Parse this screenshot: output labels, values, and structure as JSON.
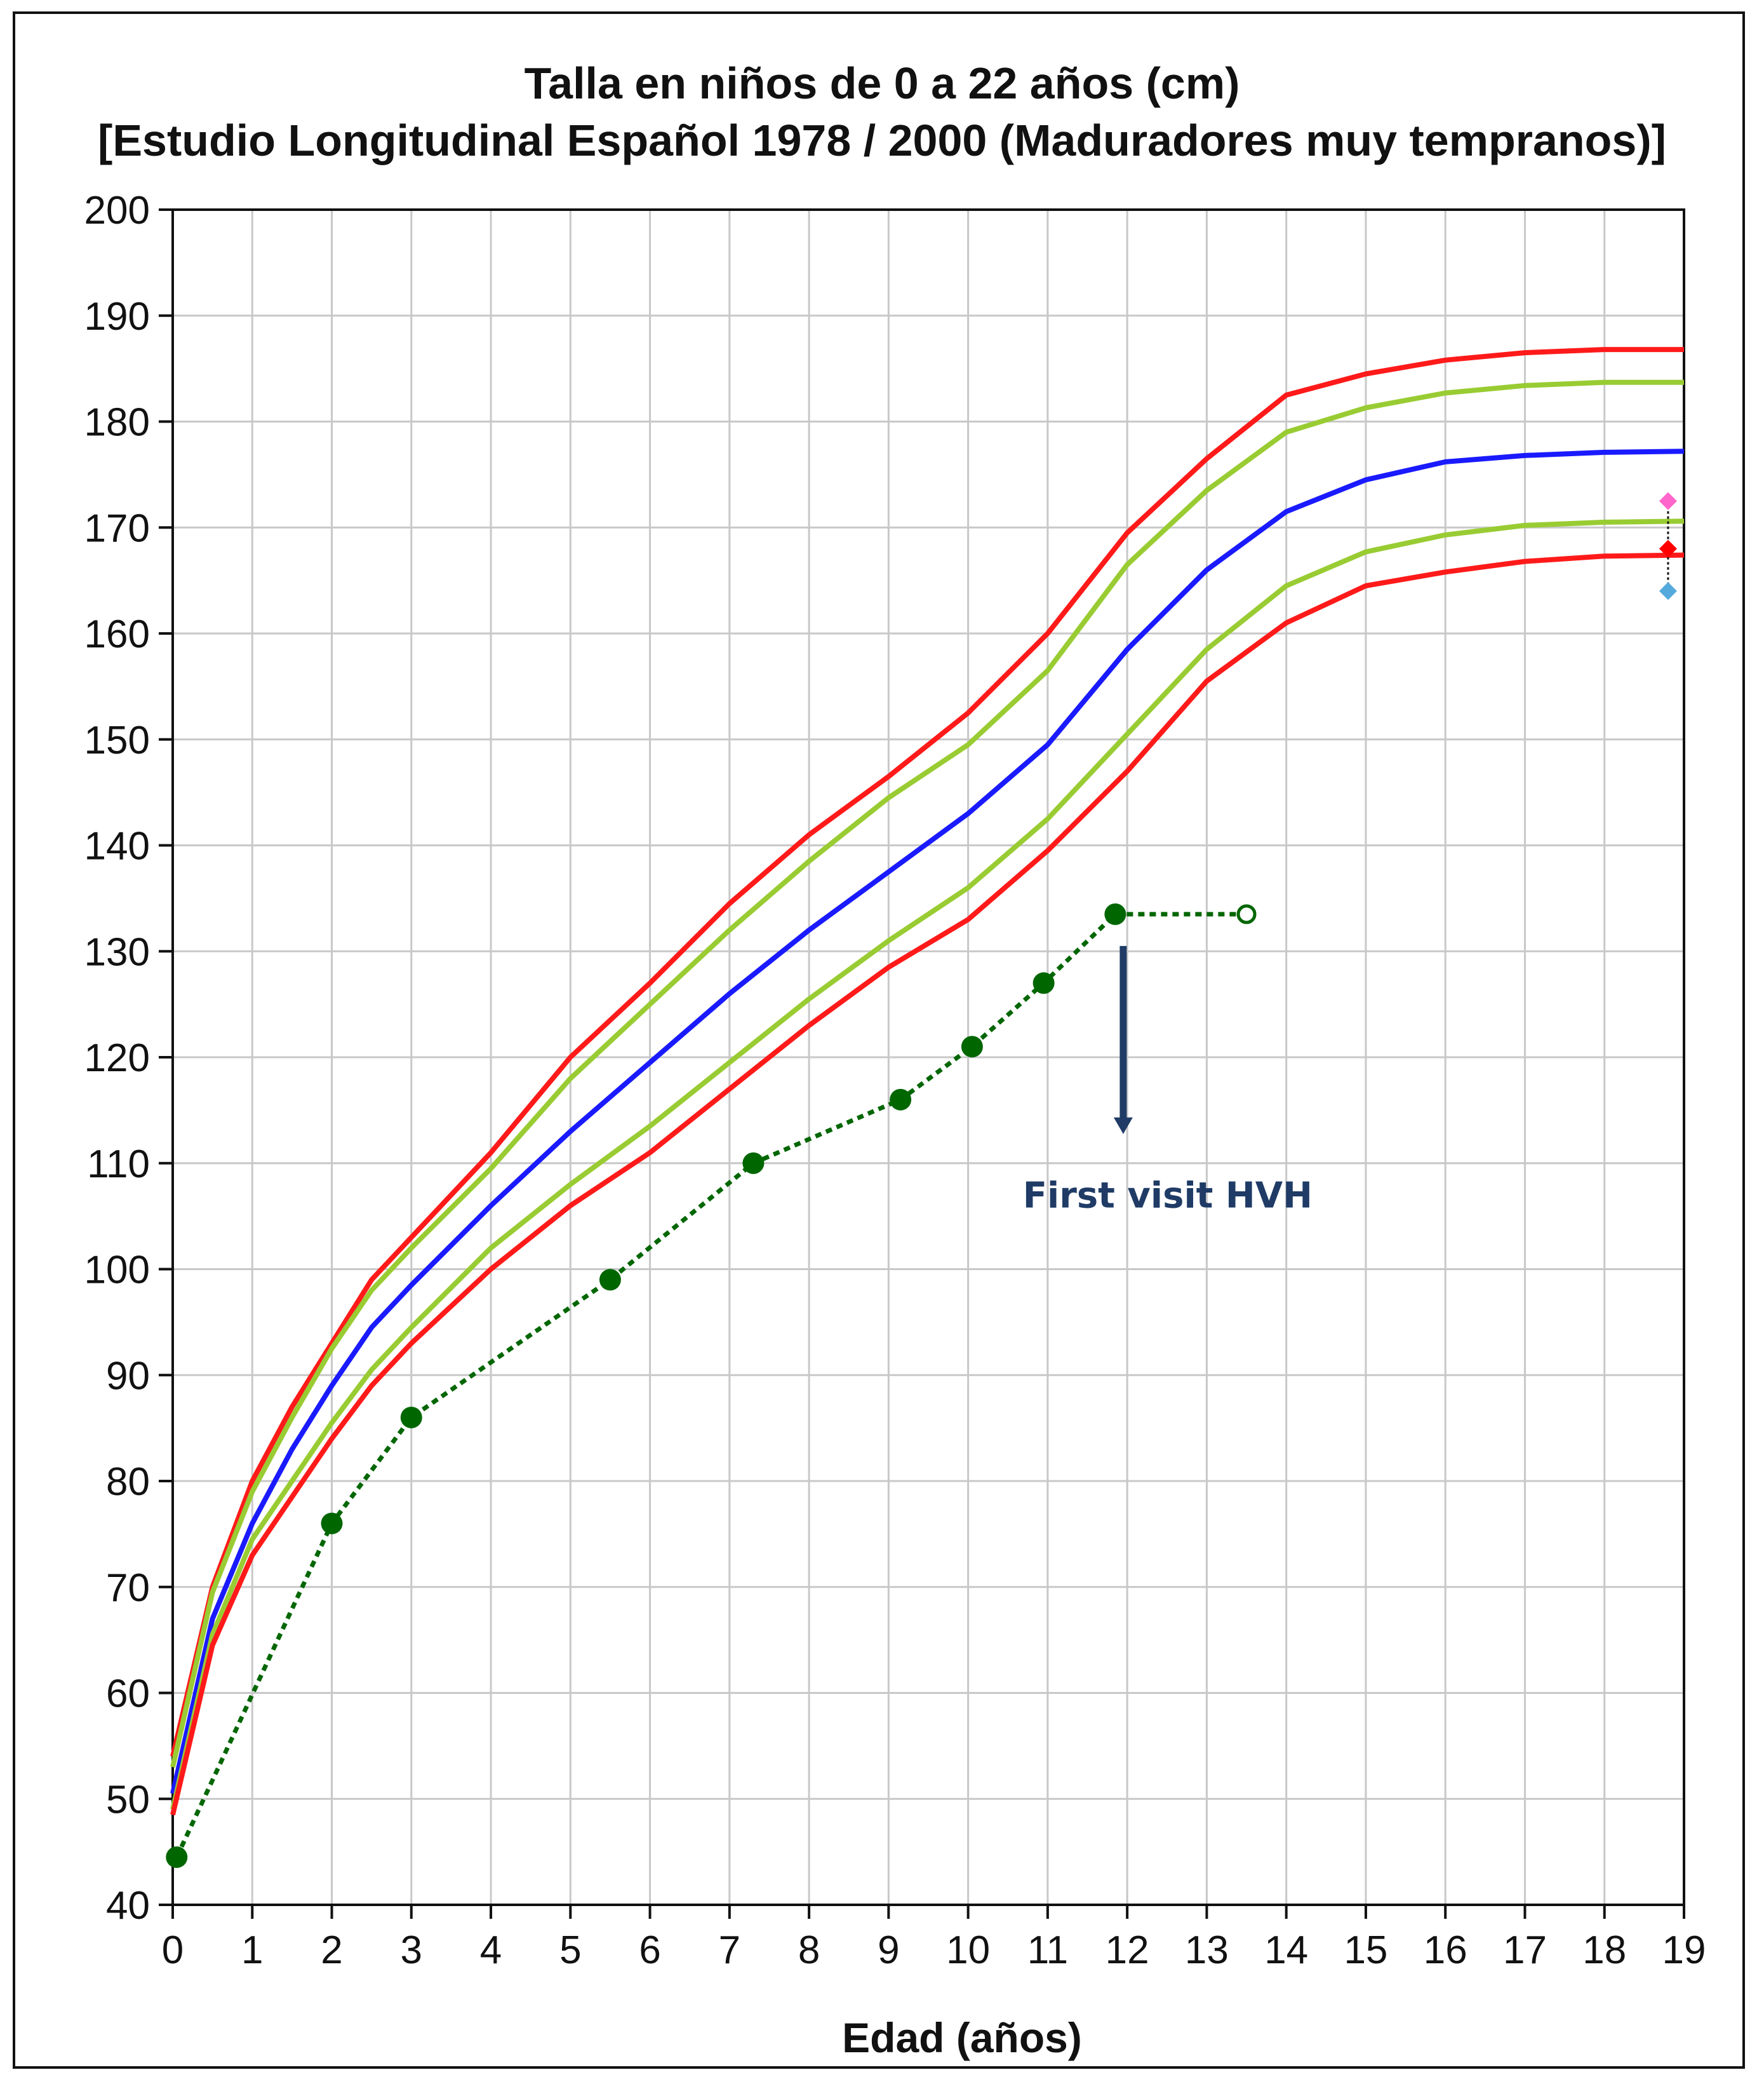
{
  "chart_data": {
    "type": "line",
    "title": "Talla en niños de 0 a 22 años (cm)",
    "subtitle": "[Estudio Longitudinal Español 1978 / 2000 (Maduradores muy tempranos)]",
    "xlabel": "Edad (años)",
    "ylabel": "",
    "xlim": [
      0,
      19
    ],
    "ylim": [
      40,
      200
    ],
    "xticks": [
      0,
      1,
      2,
      3,
      4,
      5,
      6,
      7,
      8,
      9,
      10,
      11,
      12,
      13,
      14,
      15,
      16,
      17,
      18,
      19
    ],
    "yticks": [
      40,
      50,
      60,
      70,
      80,
      90,
      100,
      110,
      120,
      130,
      140,
      150,
      160,
      170,
      180,
      190,
      200
    ],
    "grid": true,
    "legend": "none",
    "colors": {
      "outer": "#ff1a1a",
      "inner": "#99cc33",
      "median": "#1a1aff",
      "patient": "#006600",
      "annotation": "#1f3b66"
    },
    "series": [
      {
        "color": "#ff1a1a",
        "x": [
          0,
          0.5,
          1,
          1.5,
          2,
          2.5,
          3,
          4,
          5,
          6,
          7,
          8,
          9,
          10,
          11,
          12,
          13,
          14,
          15,
          16,
          17,
          18,
          19
        ],
        "y": [
          54,
          70,
          80,
          87,
          93,
          99,
          103,
          111,
          120,
          127,
          134.5,
          141,
          146.5,
          152.5,
          160,
          169.5,
          176.5,
          182.5,
          184.5,
          185.8,
          186.5,
          186.8,
          186.8
        ]
      },
      {
        "color": "#99cc33",
        "x": [
          0,
          0.5,
          1,
          1.5,
          2,
          2.5,
          3,
          4,
          5,
          6,
          7,
          8,
          9,
          10,
          11,
          12,
          13,
          14,
          15,
          16,
          17,
          18,
          19
        ],
        "y": [
          53,
          69.5,
          79,
          86,
          92.5,
          98,
          102,
          109.5,
          118,
          125,
          132,
          138.5,
          144.5,
          149.5,
          156.5,
          166.5,
          173.5,
          179,
          181.3,
          182.7,
          183.4,
          183.7,
          183.7
        ]
      },
      {
        "color": "#1a1aff",
        "x": [
          0,
          0.5,
          1,
          1.5,
          2,
          2.5,
          3,
          4,
          5,
          6,
          7,
          8,
          9,
          10,
          11,
          12,
          13,
          14,
          15,
          16,
          17,
          18,
          19
        ],
        "y": [
          50.5,
          67,
          76,
          83,
          89,
          94.5,
          98.5,
          106,
          113,
          119.5,
          126,
          132,
          137.5,
          143,
          149.5,
          158.5,
          166,
          171.5,
          174.5,
          176.2,
          176.8,
          177.1,
          177.2
        ]
      },
      {
        "color": "#99cc33",
        "x": [
          0,
          0.5,
          1,
          1.5,
          2,
          2.5,
          3,
          4,
          5,
          6,
          7,
          8,
          9,
          10,
          11,
          12,
          13,
          14,
          15,
          16,
          17,
          18,
          19
        ],
        "y": [
          49,
          65.5,
          74.5,
          80,
          85.5,
          90.5,
          94.5,
          102,
          108,
          113.5,
          119.5,
          125.5,
          131,
          136,
          142.5,
          150.5,
          158.5,
          164.5,
          167.7,
          169.3,
          170.2,
          170.5,
          170.6
        ]
      },
      {
        "color": "#ff1a1a",
        "x": [
          0,
          0.5,
          1,
          1.5,
          2,
          2.5,
          3,
          4,
          5,
          6,
          7,
          8,
          9,
          10,
          11,
          12,
          13,
          14,
          15,
          16,
          17,
          18,
          19
        ],
        "y": [
          48.5,
          64.5,
          73,
          78.5,
          84,
          89,
          93,
          100,
          106,
          111,
          117,
          123,
          128.5,
          133,
          139.5,
          147,
          155.5,
          161,
          164.5,
          165.8,
          166.8,
          167.3,
          167.4
        ]
      }
    ],
    "patient": {
      "color": "#006600",
      "x": [
        0.05,
        2,
        3,
        5.5,
        7.3,
        9.15,
        10.05,
        10.95,
        11.85
      ],
      "y": [
        44.5,
        76,
        86,
        99,
        110,
        116,
        121,
        127,
        133.5
      ],
      "projection": {
        "x": [
          11.85,
          13.5
        ],
        "y": [
          133.5,
          133.5
        ]
      }
    },
    "target_markers": [
      {
        "x": 18.8,
        "y": 172.5,
        "color": "#ff66cc"
      },
      {
        "x": 18.8,
        "y": 168,
        "color": "#ff0000"
      },
      {
        "x": 18.8,
        "y": 164,
        "color": "#55aadd"
      }
    ],
    "annotation": {
      "text": "First visit HVH",
      "arrow_x": 11.95,
      "arrow_from_y": 130.5,
      "arrow_to_y": 113
    }
  }
}
